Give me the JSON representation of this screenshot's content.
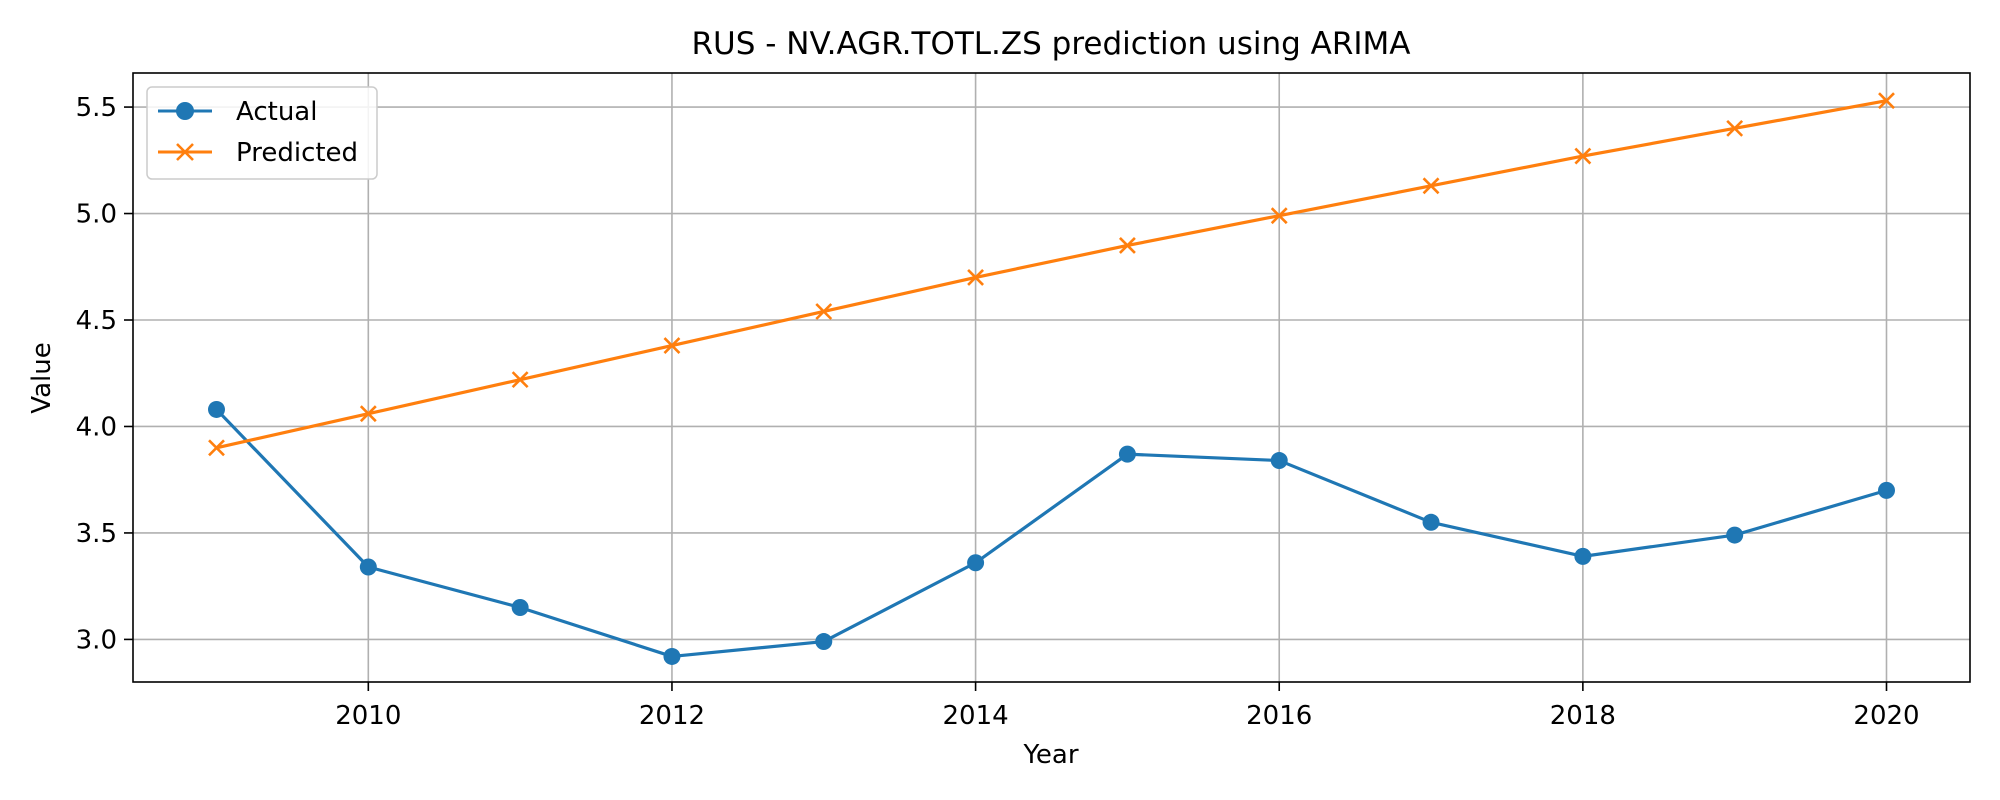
{
  "chart_data": {
    "type": "line",
    "title": "RUS - NV.AGR.TOTL.ZS prediction using ARIMA",
    "xlabel": "Year",
    "ylabel": "Value",
    "xlim": [
      2008.45,
      2020.55
    ],
    "ylim": [
      2.8,
      5.66
    ],
    "xticks": [
      2010,
      2012,
      2014,
      2016,
      2018,
      2020
    ],
    "yticks": [
      3.0,
      3.5,
      4.0,
      4.5,
      5.0,
      5.5
    ],
    "ytick_labels": [
      "3.0",
      "3.5",
      "4.0",
      "4.5",
      "5.0",
      "5.5"
    ],
    "grid": true,
    "legend_position": "top-left",
    "x": [
      2009,
      2010,
      2011,
      2012,
      2013,
      2014,
      2015,
      2016,
      2017,
      2018,
      2019,
      2020
    ],
    "series": [
      {
        "name": "Actual",
        "color": "#1f77b4",
        "marker": "circle",
        "values": [
          4.08,
          3.34,
          3.15,
          2.92,
          2.99,
          3.36,
          3.87,
          3.84,
          3.55,
          3.39,
          3.49,
          3.7
        ]
      },
      {
        "name": "Predicted",
        "color": "#ff7f0e",
        "marker": "x",
        "values": [
          3.9,
          4.06,
          4.22,
          4.38,
          4.54,
          4.7,
          4.85,
          4.99,
          5.13,
          5.27,
          5.4,
          5.53
        ]
      }
    ]
  }
}
